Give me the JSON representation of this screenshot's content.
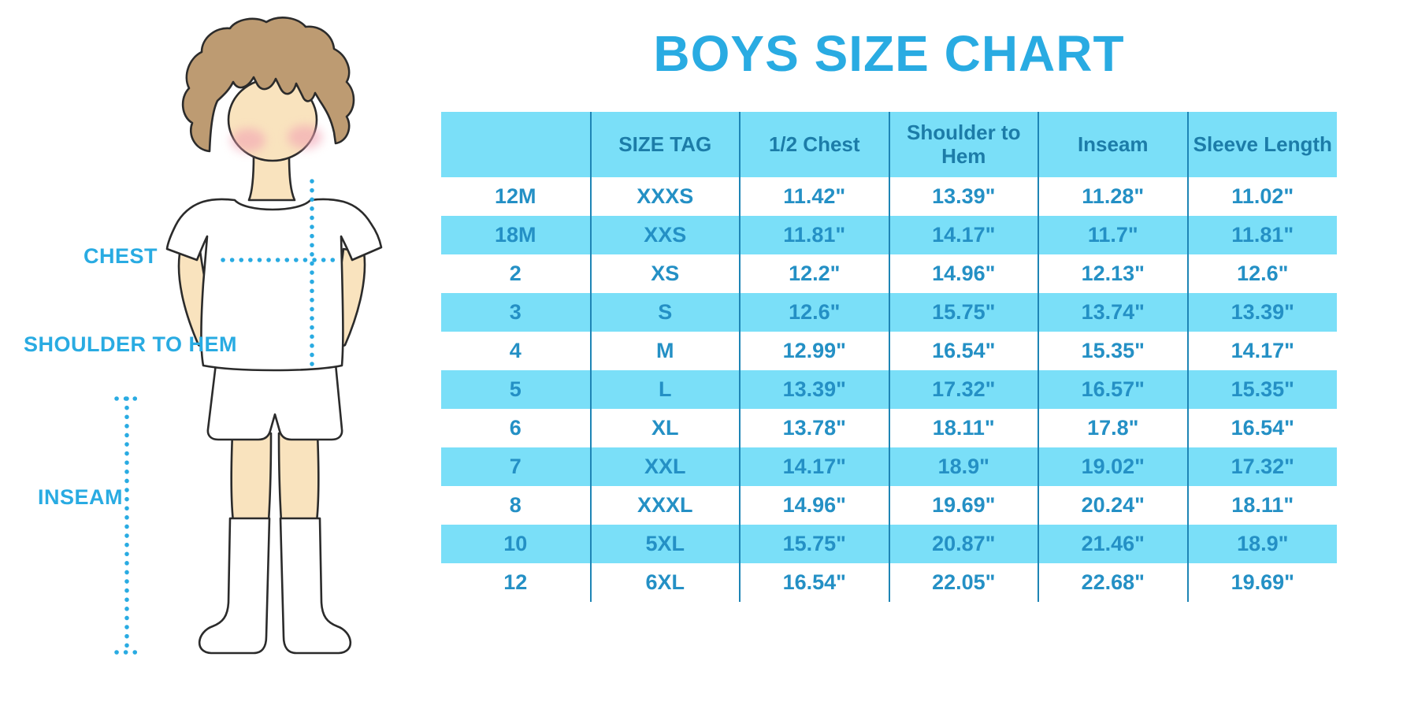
{
  "title": "BOYS SIZE CHART",
  "colors": {
    "accent_blue": "#29ABE2",
    "table_header_bg": "#7ADFF8",
    "table_alt_row_bg": "#7ADFF8",
    "table_header_text": "#1C7CA8",
    "table_text": "#2490C5",
    "divider": "#1E85B5",
    "skin": "#F9E3BE",
    "hair": "#BD9B72",
    "cheek": "#F2A3B3",
    "outline": "#2B2B2B"
  },
  "figure": {
    "labels": {
      "chest": "CHEST",
      "shoulder_to_hem": "SHOULDER TO HEM",
      "inseam": "INSEAM"
    }
  },
  "table": {
    "headers": [
      "",
      "SIZE TAG",
      "1/2 Chest",
      "Shoulder to Hem",
      "Inseam",
      "Sleeve Length"
    ],
    "rows": [
      [
        "12M",
        "XXXS",
        "11.42\"",
        "13.39\"",
        "11.28\"",
        "11.02\""
      ],
      [
        "18M",
        "XXS",
        "11.81\"",
        "14.17\"",
        "11.7\"",
        "11.81\""
      ],
      [
        "2",
        "XS",
        "12.2\"",
        "14.96\"",
        "12.13\"",
        "12.6\""
      ],
      [
        "3",
        "S",
        "12.6\"",
        "15.75\"",
        "13.74\"",
        "13.39\""
      ],
      [
        "4",
        "M",
        "12.99\"",
        "16.54\"",
        "15.35\"",
        "14.17\""
      ],
      [
        "5",
        "L",
        "13.39\"",
        "17.32\"",
        "16.57\"",
        "15.35\""
      ],
      [
        "6",
        "XL",
        "13.78\"",
        "18.11\"",
        "17.8\"",
        "16.54\""
      ],
      [
        "7",
        "XXL",
        "14.17\"",
        "18.9\"",
        "19.02\"",
        "17.32\""
      ],
      [
        "8",
        "XXXL",
        "14.96\"",
        "19.69\"",
        "20.24\"",
        "18.11\""
      ],
      [
        "10",
        "5XL",
        "15.75\"",
        "20.87\"",
        "21.46\"",
        "18.9\""
      ],
      [
        "12",
        "6XL",
        "16.54\"",
        "22.05\"",
        "22.68\"",
        "19.69\""
      ]
    ]
  },
  "chart_data": {
    "type": "table",
    "title": "BOYS SIZE CHART",
    "columns": [
      "",
      "SIZE TAG",
      "1/2 Chest",
      "Shoulder to Hem",
      "Inseam",
      "Sleeve Length"
    ],
    "rows": [
      [
        "12M",
        "XXXS",
        "11.42\"",
        "13.39\"",
        "11.28\"",
        "11.02\""
      ],
      [
        "18M",
        "XXS",
        "11.81\"",
        "14.17\"",
        "11.7\"",
        "11.81\""
      ],
      [
        "2",
        "XS",
        "12.2\"",
        "14.96\"",
        "12.13\"",
        "12.6\""
      ],
      [
        "3",
        "S",
        "12.6\"",
        "15.75\"",
        "13.74\"",
        "13.39\""
      ],
      [
        "4",
        "M",
        "12.99\"",
        "16.54\"",
        "15.35\"",
        "14.17\""
      ],
      [
        "5",
        "L",
        "13.39\"",
        "17.32\"",
        "16.57\"",
        "15.35\""
      ],
      [
        "6",
        "XL",
        "13.78\"",
        "18.11\"",
        "17.8\"",
        "16.54\""
      ],
      [
        "7",
        "XXL",
        "14.17\"",
        "18.9\"",
        "19.02\"",
        "17.32\""
      ],
      [
        "8",
        "XXXL",
        "14.96\"",
        "19.69\"",
        "20.24\"",
        "18.11\""
      ],
      [
        "10",
        "5XL",
        "15.75\"",
        "20.87\"",
        "21.46\"",
        "18.9\""
      ],
      [
        "12",
        "6XL",
        "16.54\"",
        "22.05\"",
        "22.68\"",
        "19.69\""
      ]
    ],
    "annotations": [
      "CHEST",
      "SHOULDER TO HEM",
      "INSEAM"
    ]
  }
}
